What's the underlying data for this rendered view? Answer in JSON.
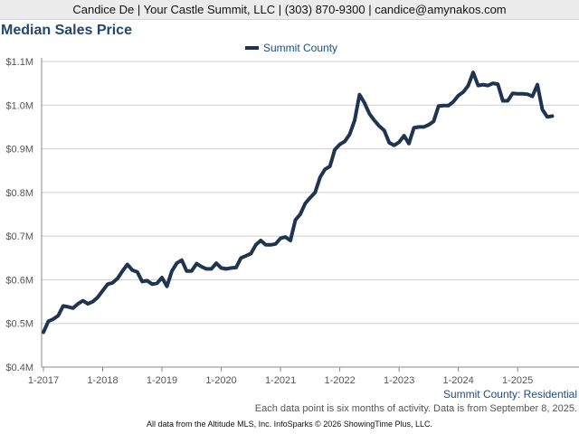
{
  "header": {
    "contact": "Candice De | Your Castle Summit, LLC | (303) 870-9300 | candice@amynakos.com"
  },
  "chart_data": {
    "type": "line",
    "title": "Median Sales Price",
    "ylim": [
      400000,
      1100000
    ],
    "y_ticks": [
      {
        "value": 400000,
        "label": "$0.4M"
      },
      {
        "value": 500000,
        "label": "$0.5M"
      },
      {
        "value": 600000,
        "label": "$0.6M"
      },
      {
        "value": 700000,
        "label": "$0.7M"
      },
      {
        "value": 800000,
        "label": "$0.8M"
      },
      {
        "value": 900000,
        "label": "$0.9M"
      },
      {
        "value": 1000000,
        "label": "$1.0M"
      },
      {
        "value": 1100000,
        "label": "$1.1M"
      }
    ],
    "x_ticks": [
      {
        "value": 0,
        "label": "1-2017"
      },
      {
        "value": 12,
        "label": "1-2018"
      },
      {
        "value": 24,
        "label": "1-2019"
      },
      {
        "value": 36,
        "label": "1-2020"
      },
      {
        "value": 48,
        "label": "1-2021"
      },
      {
        "value": 60,
        "label": "1-2022"
      },
      {
        "value": 72,
        "label": "1-2023"
      },
      {
        "value": 84,
        "label": "1-2024"
      },
      {
        "value": 96,
        "label": "1-2025"
      }
    ],
    "xlim": [
      0,
      104
    ],
    "grid": true,
    "legend_position": "top-center",
    "series": [
      {
        "name": "Summit County",
        "color": "#1f3450",
        "x_unit": "months since Jan 2017",
        "points": [
          [
            0,
            480000
          ],
          [
            1,
            505000
          ],
          [
            2,
            510000
          ],
          [
            3,
            518000
          ],
          [
            4,
            540000
          ],
          [
            5,
            538000
          ],
          [
            6,
            535000
          ],
          [
            7,
            545000
          ],
          [
            8,
            552000
          ],
          [
            9,
            545000
          ],
          [
            10,
            550000
          ],
          [
            11,
            560000
          ],
          [
            12,
            575000
          ],
          [
            13,
            590000
          ],
          [
            14,
            593000
          ],
          [
            15,
            603000
          ],
          [
            16,
            620000
          ],
          [
            17,
            635000
          ],
          [
            18,
            622000
          ],
          [
            19,
            618000
          ],
          [
            20,
            596000
          ],
          [
            21,
            598000
          ],
          [
            22,
            590000
          ],
          [
            23,
            592000
          ],
          [
            24,
            605000
          ],
          [
            25,
            585000
          ],
          [
            26,
            620000
          ],
          [
            27,
            638000
          ],
          [
            28,
            645000
          ],
          [
            29,
            620000
          ],
          [
            30,
            620000
          ],
          [
            31,
            637000
          ],
          [
            32,
            630000
          ],
          [
            33,
            625000
          ],
          [
            34,
            625000
          ],
          [
            35,
            638000
          ],
          [
            36,
            627000
          ],
          [
            37,
            625000
          ],
          [
            38,
            627000
          ],
          [
            39,
            628000
          ],
          [
            40,
            650000
          ],
          [
            41,
            655000
          ],
          [
            42,
            660000
          ],
          [
            43,
            680000
          ],
          [
            44,
            690000
          ],
          [
            45,
            680000
          ],
          [
            46,
            680000
          ],
          [
            47,
            682000
          ],
          [
            48,
            695000
          ],
          [
            49,
            698000
          ],
          [
            50,
            690000
          ],
          [
            51,
            737000
          ],
          [
            52,
            750000
          ],
          [
            53,
            775000
          ],
          [
            54,
            788000
          ],
          [
            55,
            800000
          ],
          [
            56,
            835000
          ],
          [
            57,
            853000
          ],
          [
            58,
            860000
          ],
          [
            59,
            898000
          ],
          [
            60,
            910000
          ],
          [
            61,
            917000
          ],
          [
            62,
            933000
          ],
          [
            63,
            965000
          ],
          [
            64,
            1024000
          ],
          [
            65,
            1005000
          ],
          [
            66,
            980000
          ],
          [
            67,
            965000
          ],
          [
            68,
            952000
          ],
          [
            69,
            942000
          ],
          [
            70,
            914000
          ],
          [
            71,
            908000
          ],
          [
            72,
            915000
          ],
          [
            73,
            930000
          ],
          [
            74,
            912000
          ],
          [
            75,
            948000
          ],
          [
            76,
            950000
          ],
          [
            77,
            950000
          ],
          [
            78,
            955000
          ],
          [
            79,
            963000
          ],
          [
            80,
            998000
          ],
          [
            81,
            999000
          ],
          [
            82,
            999000
          ],
          [
            83,
            1008000
          ],
          [
            84,
            1022000
          ],
          [
            85,
            1030000
          ],
          [
            86,
            1045000
          ],
          [
            87,
            1075000
          ],
          [
            88,
            1045000
          ],
          [
            89,
            1047000
          ],
          [
            90,
            1045000
          ],
          [
            91,
            1050000
          ],
          [
            92,
            1048000
          ],
          [
            93,
            1010000
          ],
          [
            94,
            1010000
          ],
          [
            95,
            1027000
          ],
          [
            96,
            1026000
          ],
          [
            97,
            1026000
          ],
          [
            98,
            1025000
          ],
          [
            99,
            1020000
          ],
          [
            100,
            1047000
          ],
          [
            101,
            990000
          ],
          [
            102,
            973000
          ],
          [
            103,
            975000
          ]
        ]
      }
    ]
  },
  "footer": {
    "series_label": "Summit County: Residential",
    "note": "Each data point is six months of activity. Data is from September 8, 2025.",
    "source": "All data from the Altitude MLS, Inc. InfoSparks © 2026 ShowingTime Plus, LLC."
  }
}
